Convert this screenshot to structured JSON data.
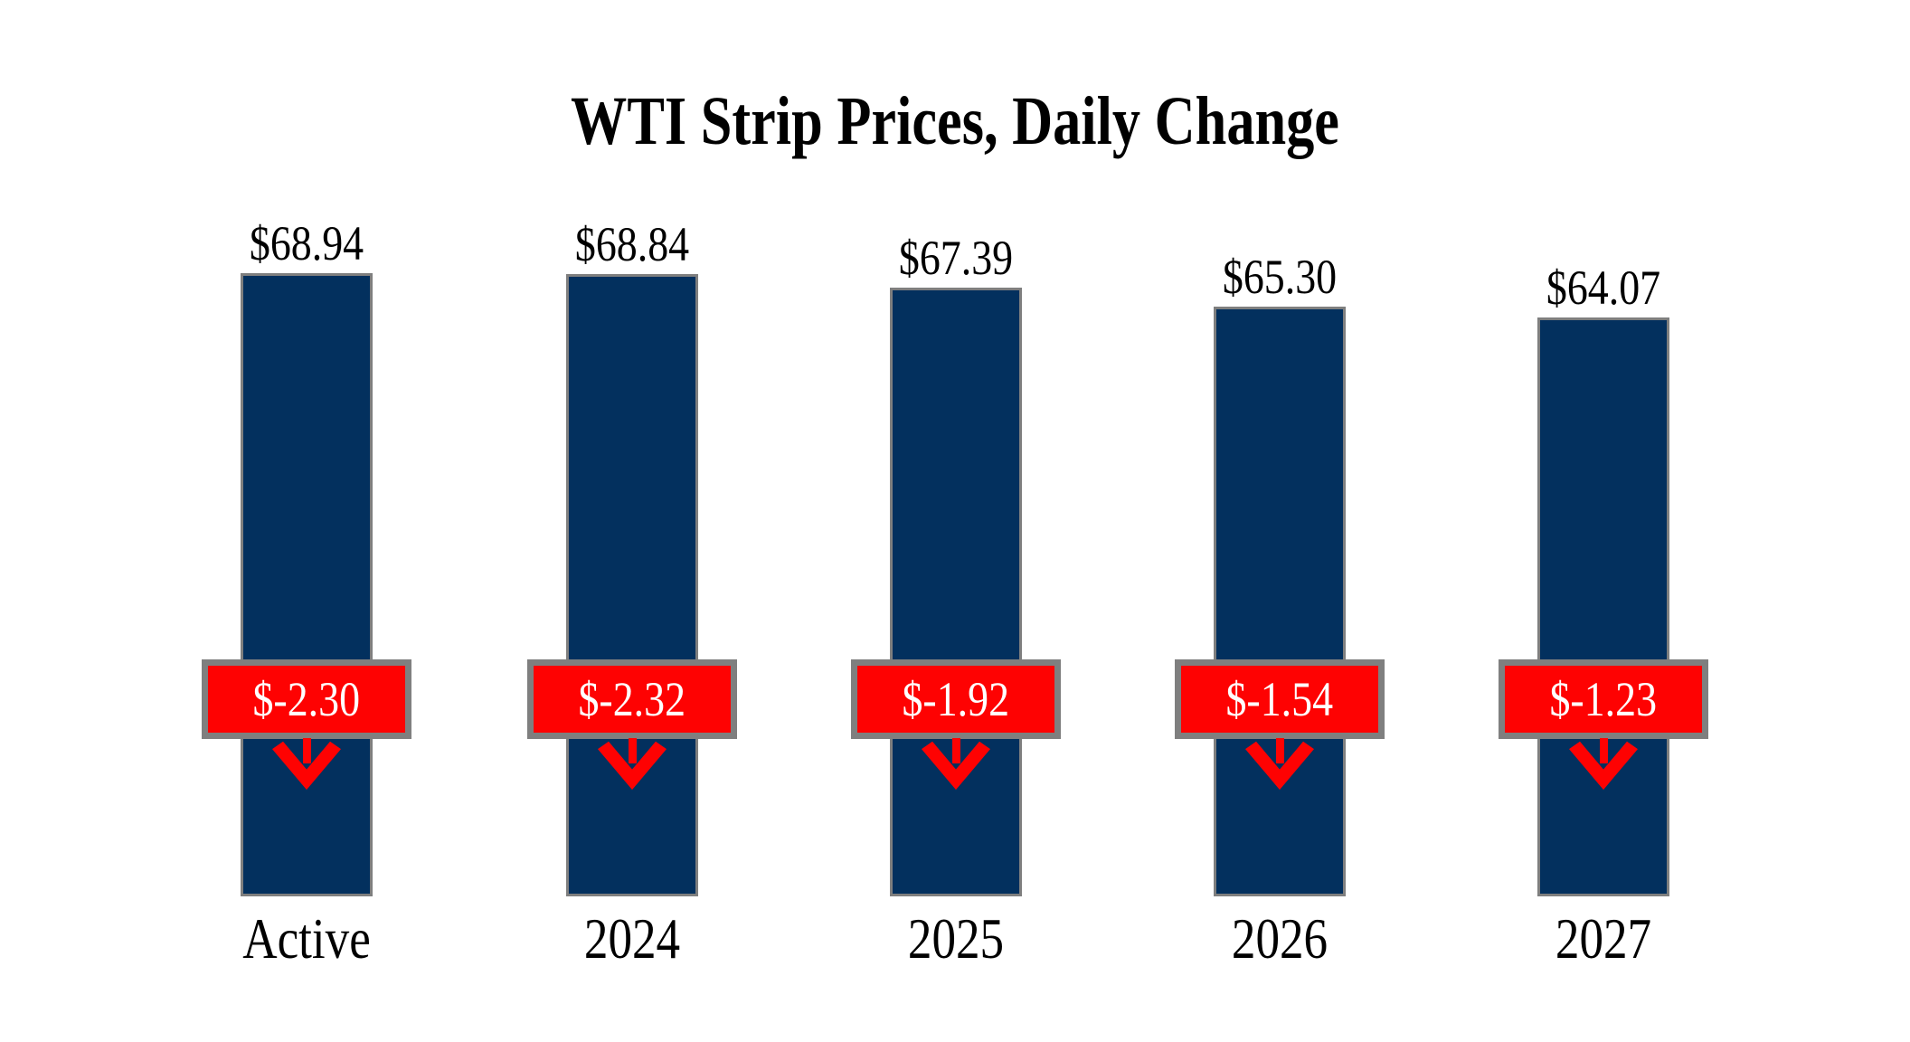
{
  "title": "WTI Strip Prices, Daily Change",
  "colors": {
    "background": "#FFFFFF",
    "bar_fill": "#03305E",
    "bar_border": "#7F7F7F",
    "badge_fill": "#FE0202",
    "badge_border": "#7F7F7F",
    "badge_text": "#FFFFFF",
    "arrow": "#FE0202",
    "text": "#000000"
  },
  "chart_data": {
    "type": "bar",
    "title": "WTI Strip Prices, Daily Change",
    "categories": [
      "Active",
      "2024",
      "2025",
      "2026",
      "2027"
    ],
    "series": [
      {
        "name": "Strip Price",
        "values": [
          68.94,
          68.84,
          67.39,
          65.3,
          64.07
        ],
        "labels": [
          "$68.94",
          "$68.84",
          "$67.39",
          "$65.30",
          "$64.07"
        ]
      },
      {
        "name": "Daily Change",
        "values": [
          -2.3,
          -2.32,
          -1.92,
          -1.54,
          -1.23
        ],
        "labels": [
          "$-2.30",
          "$-2.32",
          "$-1.92",
          "$-1.54",
          "$-1.23"
        ]
      }
    ],
    "ylim": [
      0,
      69
    ],
    "axes_visible": false,
    "gridlines": false,
    "legend": "none",
    "annotations": "Each navy bar is the strip price from $0; a red badge mid-bar shows the daily change with a red down arrow beneath it; price label above each bar, period label below."
  }
}
